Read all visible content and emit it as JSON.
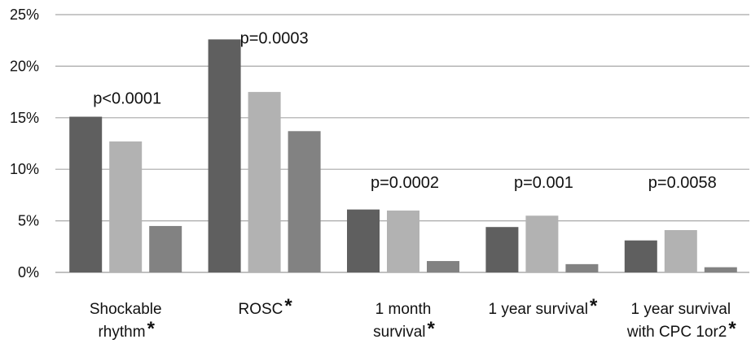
{
  "chart_data": {
    "type": "bar",
    "title": "",
    "xlabel": "",
    "ylabel": "",
    "ylim": [
      0,
      25
    ],
    "yticks": [
      "0%",
      "5%",
      "10%",
      "15%",
      "20%",
      "25%"
    ],
    "grid": true,
    "legend": "none",
    "categories": [
      {
        "lines": [
          "Shockable",
          "rhythm"
        ],
        "star": "*"
      },
      {
        "lines": [
          "ROSC"
        ],
        "star": "*"
      },
      {
        "lines": [
          "1 month",
          "survival"
        ],
        "star": "*"
      },
      {
        "lines": [
          "1 year survival"
        ],
        "star": "*"
      },
      {
        "lines": [
          "1 year survival",
          "with CPC 1or2"
        ],
        "star": "*"
      }
    ],
    "series": [
      {
        "values": [
          15.1,
          22.6,
          6.1,
          4.4,
          3.1
        ],
        "color": "#5f5f5f"
      },
      {
        "values": [
          12.7,
          17.5,
          6.0,
          5.5,
          4.1
        ],
        "color": "#b2b2b2"
      },
      {
        "values": [
          4.5,
          13.7,
          1.1,
          0.8,
          0.5
        ],
        "color": "#828282"
      }
    ],
    "annotations": [
      "p<0.0001",
      "p=0.0003",
      "p=0.0002",
      "p=0.001",
      "p=0.0058"
    ]
  }
}
